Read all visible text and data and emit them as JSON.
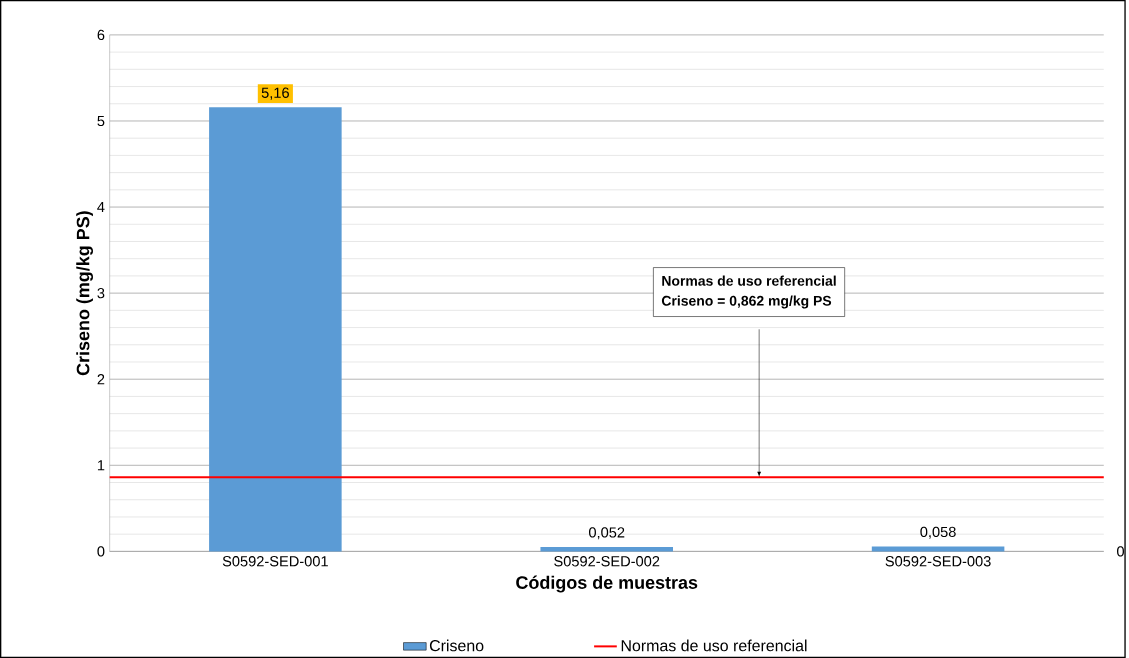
{
  "chart_data": {
    "type": "bar",
    "xlabel": "Códigos de muestras",
    "ylabel": "Criseno (mg/kg PS)",
    "categories": [
      "S0592-SED-001",
      "S0592-SED-002",
      "S0592-SED-003"
    ],
    "series": [
      {
        "name": "Criseno",
        "color": "#5b9bd5",
        "values": [
          5.16,
          0.052,
          0.058
        ],
        "value_labels": [
          "5,16",
          "0,052",
          "0,058"
        ]
      }
    ],
    "ylim": [
      0,
      6
    ],
    "yticks": [
      0,
      1,
      2,
      3,
      4,
      5,
      6
    ],
    "grid": "y",
    "legend": "bottom",
    "ref_lines": [
      {
        "axis": "y",
        "value": 0.862,
        "label": "Normas de uso referencial",
        "color": "#ff0000"
      }
    ],
    "annotations": [
      "Normas de uso referencial",
      "Criseno = 0,862 mg/kg PS",
      "0"
    ]
  }
}
